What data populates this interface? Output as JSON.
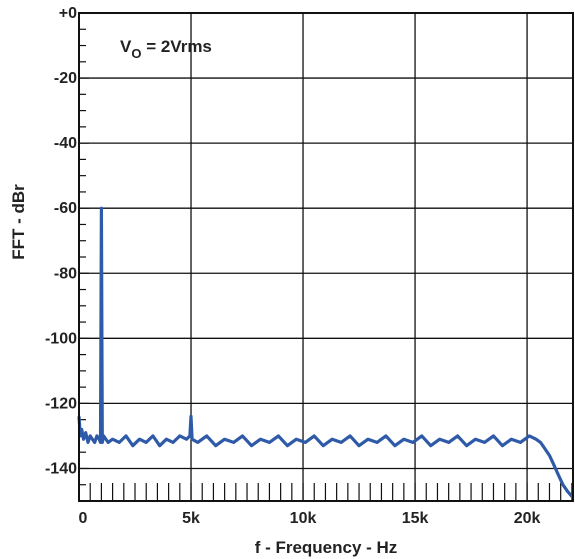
{
  "chart_data": {
    "type": "line",
    "xlabel": "f - Frequency - Hz",
    "ylabel": "FFT - dBr",
    "xlim": [
      0,
      22050
    ],
    "ylim": [
      -150,
      0
    ],
    "grid": true,
    "x_ticks": [
      {
        "value": 0,
        "label": "0"
      },
      {
        "value": 5000,
        "label": "5k"
      },
      {
        "value": 10000,
        "label": "10k"
      },
      {
        "value": 15000,
        "label": "15k"
      },
      {
        "value": 20000,
        "label": "20k"
      }
    ],
    "y_ticks": [
      {
        "value": 0,
        "label": "+0"
      },
      {
        "value": -20,
        "label": "-20"
      },
      {
        "value": -40,
        "label": "-40"
      },
      {
        "value": -60,
        "label": "-60"
      },
      {
        "value": -80,
        "label": "-80"
      },
      {
        "value": -100,
        "label": "-100"
      },
      {
        "value": -120,
        "label": "-120"
      },
      {
        "value": -140,
        "label": "-140"
      }
    ],
    "annotation": {
      "prefix": "V",
      "subscript": "O",
      "suffix": " = 2Vrms"
    },
    "line_color": "#2f5aa8",
    "series": [
      {
        "values": [
          [
            0,
            -124
          ],
          [
            60,
            -130
          ],
          [
            120,
            -128
          ],
          [
            200,
            -131
          ],
          [
            300,
            -129
          ],
          [
            400,
            -132
          ],
          [
            500,
            -130
          ],
          [
            600,
            -131
          ],
          [
            700,
            -132
          ],
          [
            800,
            -130
          ],
          [
            900,
            -131
          ],
          [
            960,
            -132
          ],
          [
            1000,
            -60
          ],
          [
            1040,
            -132
          ],
          [
            1100,
            -130
          ],
          [
            1300,
            -132
          ],
          [
            1500,
            -131
          ],
          [
            1800,
            -132
          ],
          [
            2100,
            -130
          ],
          [
            2400,
            -133
          ],
          [
            2700,
            -131
          ],
          [
            3000,
            -132
          ],
          [
            3300,
            -130
          ],
          [
            3600,
            -133
          ],
          [
            3900,
            -131
          ],
          [
            4200,
            -132
          ],
          [
            4500,
            -130
          ],
          [
            4800,
            -131
          ],
          [
            4950,
            -130
          ],
          [
            5000,
            -124
          ],
          [
            5050,
            -131
          ],
          [
            5300,
            -132
          ],
          [
            5700,
            -130
          ],
          [
            6100,
            -133
          ],
          [
            6500,
            -131
          ],
          [
            6900,
            -132
          ],
          [
            7300,
            -130
          ],
          [
            7700,
            -133
          ],
          [
            8100,
            -131
          ],
          [
            8500,
            -132
          ],
          [
            8900,
            -130
          ],
          [
            9300,
            -133
          ],
          [
            9700,
            -131
          ],
          [
            10100,
            -132
          ],
          [
            10500,
            -130
          ],
          [
            10900,
            -133
          ],
          [
            11300,
            -131
          ],
          [
            11700,
            -132
          ],
          [
            12100,
            -130
          ],
          [
            12500,
            -133
          ],
          [
            12900,
            -131
          ],
          [
            13300,
            -132
          ],
          [
            13700,
            -130
          ],
          [
            14100,
            -133
          ],
          [
            14500,
            -131
          ],
          [
            14900,
            -132
          ],
          [
            15300,
            -130
          ],
          [
            15700,
            -133
          ],
          [
            16100,
            -131
          ],
          [
            16500,
            -132
          ],
          [
            16900,
            -130
          ],
          [
            17300,
            -133
          ],
          [
            17700,
            -131
          ],
          [
            18100,
            -132
          ],
          [
            18500,
            -130
          ],
          [
            18900,
            -133
          ],
          [
            19300,
            -131
          ],
          [
            19700,
            -132
          ],
          [
            20100,
            -130
          ],
          [
            20400,
            -131
          ],
          [
            20600,
            -132
          ],
          [
            20800,
            -134
          ],
          [
            21000,
            -136
          ],
          [
            21200,
            -139
          ],
          [
            21400,
            -142
          ],
          [
            21600,
            -145
          ],
          [
            21800,
            -147
          ],
          [
            22050,
            -149
          ]
        ]
      }
    ]
  }
}
